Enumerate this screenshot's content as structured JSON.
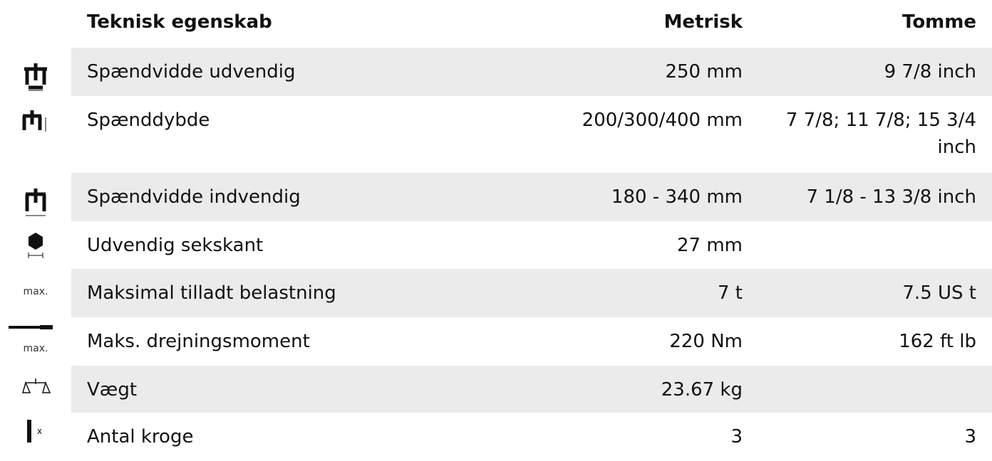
{
  "table": {
    "header": [
      "Teknisk egenskab",
      "Metrisk",
      "Tomme"
    ],
    "rows": [
      {
        "name": "Spændvidde udvendig",
        "metric": "250 mm",
        "imperial": "9 7/8 inch"
      },
      {
        "name": "Spænddybde",
        "metric": "200/300/400 mm",
        "imperial": "7 7/8; 11 7/8; 15 3/4 inch"
      },
      {
        "name": "Spændvidde indvendig",
        "metric": "180 - 340 mm",
        "imperial": "7 1/8 - 13 3/8 inch"
      },
      {
        "name": "Udvendig sekskant",
        "metric": "27 mm"
      },
      {
        "icon_text": "max.",
        "name": "Maksimal tilladt belastning",
        "metric": "7 t",
        "imperial": "7.5 US t"
      },
      {
        "icon_text": "max.",
        "name": "Maks. drejningsmoment",
        "metric": "220 Nm",
        "imperial": "162 ft lb"
      },
      {
        "name": "Vægt",
        "metric": "23.67 kg"
      },
      {
        "name": "Antal kroge",
        "metric": "3",
        "imperial": "3"
      }
    ]
  }
}
